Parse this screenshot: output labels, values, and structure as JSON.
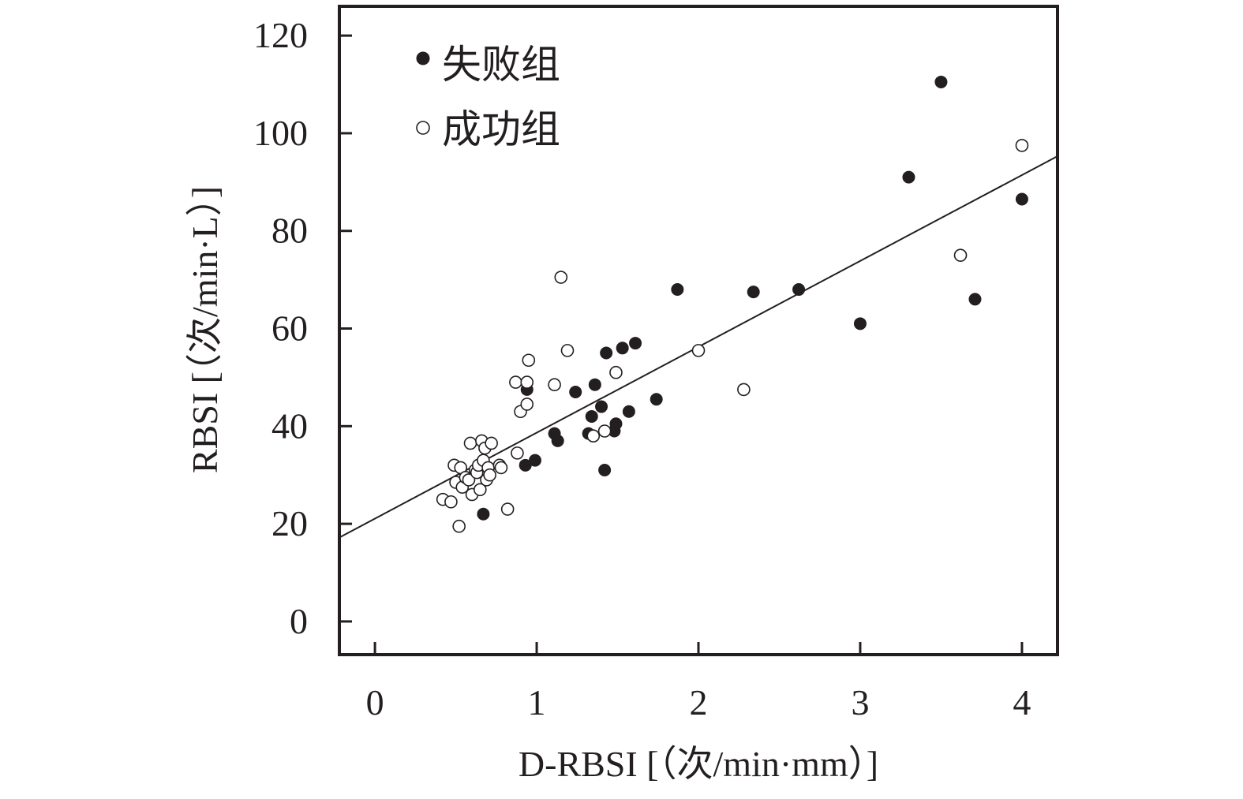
{
  "chart_data": {
    "type": "scatter",
    "title": "",
    "xlabel": "D-RBSI [（次/min·mm）]",
    "ylabel": "RBSI [（次/min·L）]",
    "xlim": [
      -0.22,
      4.22
    ],
    "ylim": [
      -6.8,
      126
    ],
    "x_ticks": [
      0,
      1,
      2,
      3,
      4
    ],
    "y_ticks": [
      0,
      20,
      40,
      60,
      80,
      100,
      120
    ],
    "x_tick_labels": [
      "0",
      "1",
      "2",
      "3",
      "4"
    ],
    "y_tick_labels": [
      "0",
      "20",
      "40",
      "60",
      "80",
      "100",
      "120"
    ],
    "grid": false,
    "legend_position": "top-left",
    "series": [
      {
        "name": "失败组",
        "marker": "filled-circle",
        "color": "#231f20",
        "points": [
          [
            0.67,
            22
          ],
          [
            0.93,
            32
          ],
          [
            0.99,
            33
          ],
          [
            0.94,
            47.5
          ],
          [
            1.11,
            38.5
          ],
          [
            1.13,
            37
          ],
          [
            1.24,
            47
          ],
          [
            1.32,
            38.5
          ],
          [
            1.34,
            42
          ],
          [
            1.36,
            48.5
          ],
          [
            1.4,
            44
          ],
          [
            1.42,
            31
          ],
          [
            1.43,
            55
          ],
          [
            1.48,
            39
          ],
          [
            1.49,
            40.5
          ],
          [
            1.53,
            56
          ],
          [
            1.57,
            43
          ],
          [
            1.61,
            57
          ],
          [
            1.74,
            45.5
          ],
          [
            1.87,
            68
          ],
          [
            2.34,
            67.5
          ],
          [
            2.62,
            68
          ],
          [
            3.0,
            61
          ],
          [
            3.3,
            91
          ],
          [
            3.5,
            110.5
          ],
          [
            3.71,
            66
          ],
          [
            4.0,
            86.5
          ]
        ]
      },
      {
        "name": "成功组",
        "marker": "open-circle",
        "color": "#231f20",
        "points": [
          [
            0.42,
            25
          ],
          [
            0.47,
            24.5
          ],
          [
            0.49,
            32
          ],
          [
            0.5,
            28.5
          ],
          [
            0.52,
            19.5
          ],
          [
            0.53,
            31.5
          ],
          [
            0.54,
            27.5
          ],
          [
            0.56,
            29.5
          ],
          [
            0.58,
            29
          ],
          [
            0.59,
            36.5
          ],
          [
            0.6,
            26
          ],
          [
            0.62,
            31
          ],
          [
            0.63,
            30.5
          ],
          [
            0.64,
            32
          ],
          [
            0.65,
            27
          ],
          [
            0.66,
            37
          ],
          [
            0.67,
            33
          ],
          [
            0.68,
            35.5
          ],
          [
            0.69,
            29
          ],
          [
            0.7,
            31.5
          ],
          [
            0.71,
            30
          ],
          [
            0.72,
            36.5
          ],
          [
            0.77,
            32
          ],
          [
            0.78,
            31.5
          ],
          [
            0.82,
            23
          ],
          [
            0.87,
            49
          ],
          [
            0.88,
            34.5
          ],
          [
            0.9,
            43
          ],
          [
            0.94,
            44.5
          ],
          [
            0.94,
            49
          ],
          [
            0.95,
            53.5
          ],
          [
            1.11,
            48.5
          ],
          [
            1.15,
            70.5
          ],
          [
            1.19,
            55.5
          ],
          [
            1.35,
            38
          ],
          [
            1.42,
            39
          ],
          [
            1.49,
            51
          ],
          [
            2.0,
            55.5
          ],
          [
            2.28,
            47.5
          ],
          [
            3.62,
            75
          ],
          [
            4.0,
            97.5
          ]
        ]
      }
    ],
    "regression_line": {
      "x": [
        -0.22,
        4.22
      ],
      "y": [
        17.2,
        95.3
      ]
    }
  }
}
